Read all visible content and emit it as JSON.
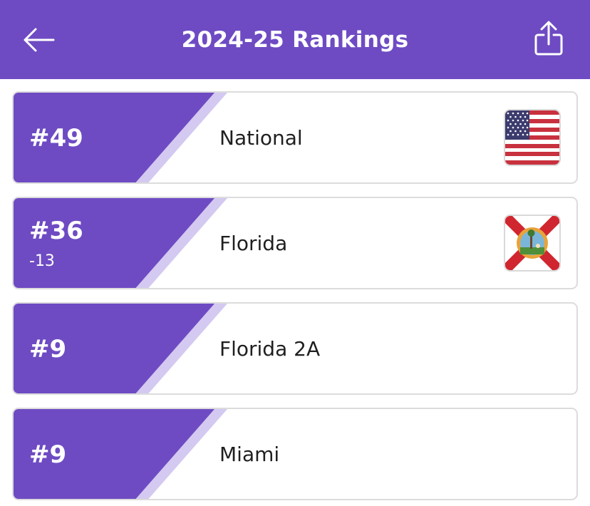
{
  "header": {
    "title": "2024-25 Rankings",
    "back_icon": "arrow-left-icon",
    "share_icon": "share-icon",
    "bg_color": "#6e4bc3"
  },
  "rankings": [
    {
      "rank": "#49",
      "change": "",
      "label": "National",
      "flag": "us-flag-icon"
    },
    {
      "rank": "#36",
      "change": "-13",
      "label": "Florida",
      "flag": "florida-flag-icon"
    },
    {
      "rank": "#9",
      "change": "",
      "label": "Florida 2A",
      "flag": ""
    },
    {
      "rank": "#9",
      "change": "",
      "label": "Miami",
      "flag": ""
    }
  ],
  "colors": {
    "accent": "#6e4bc3",
    "accent_light": "#d4c9f0",
    "card_border": "#dcdcdc",
    "text": "#1f1f1f"
  }
}
